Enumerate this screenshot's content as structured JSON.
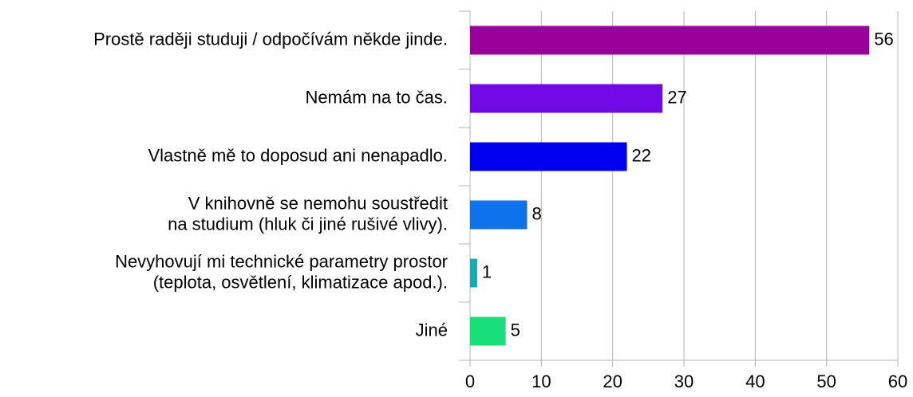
{
  "chart_data": {
    "type": "bar",
    "orientation": "horizontal",
    "categories": [
      "Prostě raději studuji / odpočívám někde jinde.",
      "Nemám na to čas.",
      "Vlastně mě to doposud ani nenapadlo.",
      "V knihovně se nemohu soustředit\nna studium (hluk či jiné rušivé vlivy).",
      "Nevyhovují mi technické parametry prostor\n(teplota, osvětlení, klimatizace apod.).",
      "Jiné"
    ],
    "values": [
      56,
      27,
      22,
      8,
      1,
      5
    ],
    "colors": [
      "#990099",
      "#7109e6",
      "#0000f0",
      "#0e72ea",
      "#14a9b5",
      "#19df7a"
    ],
    "xlim": [
      0,
      60
    ],
    "xticks": [
      0,
      10,
      20,
      30,
      40,
      50,
      60
    ],
    "grid": true
  }
}
